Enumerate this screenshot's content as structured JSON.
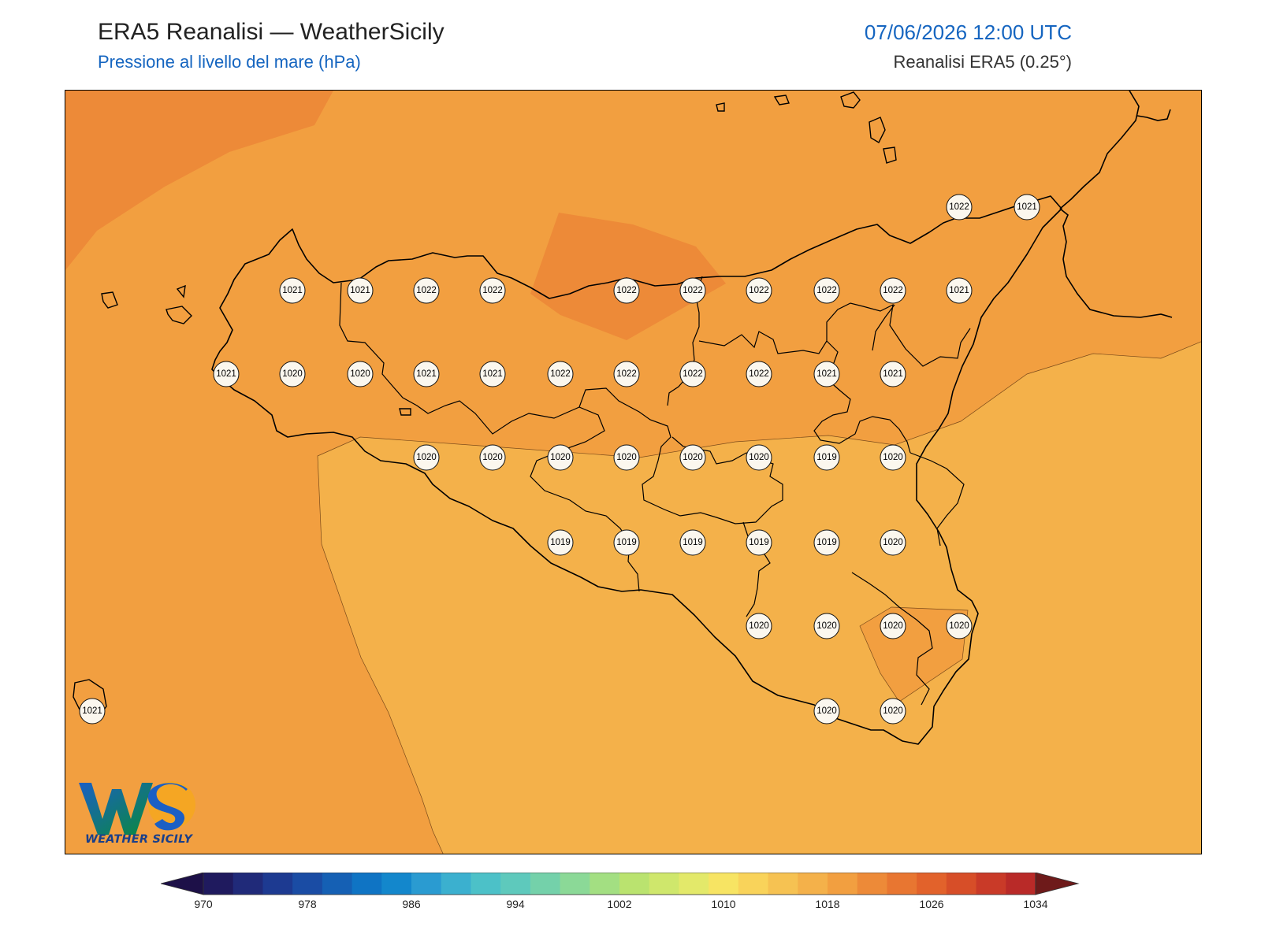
{
  "header": {
    "title": "ERA5 Reanalisi — WeatherSicily",
    "subtitle": "Pressione al livello del mare (hPa)",
    "datetime": "07/06/2026 12:00 UTC",
    "source": "Reanalisi ERA5 (0.25°)"
  },
  "logo": {
    "text": "WEATHER SICILY",
    "mark": "WS"
  },
  "colors": {
    "band_1016_1018": "#f4b14a",
    "band_1018_1020": "#f29f40",
    "band_1020_1022": "#ed8a38",
    "coast": "#000000",
    "station_fill": "#fbf7ee"
  },
  "colorbar": {
    "min": 970,
    "max": 1034,
    "step": 2,
    "tick_labels": [
      "970",
      "978",
      "986",
      "994",
      "1002",
      "1010",
      "1018",
      "1026",
      "1034"
    ],
    "colors": [
      "#1d1048",
      "#1f1a5e",
      "#202a79",
      "#1d3a91",
      "#1a4ca4",
      "#1560b4",
      "#0f74c4",
      "#1387cc",
      "#2a9bd1",
      "#3bb0cf",
      "#4cc1c8",
      "#5ec9bc",
      "#74d1aa",
      "#8bd997",
      "#a3df82",
      "#bae36f",
      "#cfe76c",
      "#e3e96a",
      "#f7e463",
      "#f9d35a",
      "#f6c252",
      "#f4b14a",
      "#f29f40",
      "#ed8a38",
      "#e87631",
      "#e2622b",
      "#d74e28",
      "#c93a28",
      "#b92a28",
      "#6e1a1a"
    ]
  },
  "stations": [
    {
      "v": "1022"
    },
    {
      "v": "1021"
    },
    {
      "v": "1021"
    },
    {
      "v": "1021"
    },
    {
      "v": "1022"
    },
    {
      "v": "1022"
    },
    {
      "v": "1022"
    },
    {
      "v": "1022"
    },
    {
      "v": "1022"
    },
    {
      "v": "1022"
    },
    {
      "v": "1022"
    },
    {
      "v": "1021"
    },
    {
      "v": "1021"
    },
    {
      "v": "1020"
    },
    {
      "v": "1020"
    },
    {
      "v": "1021"
    },
    {
      "v": "1021"
    },
    {
      "v": "1022"
    },
    {
      "v": "1022"
    },
    {
      "v": "1022"
    },
    {
      "v": "1022"
    },
    {
      "v": "1021"
    },
    {
      "v": "1021"
    },
    {
      "v": "1020"
    },
    {
      "v": "1020"
    },
    {
      "v": "1020"
    },
    {
      "v": "1020"
    },
    {
      "v": "1020"
    },
    {
      "v": "1020"
    },
    {
      "v": "1019"
    },
    {
      "v": "1020"
    },
    {
      "v": "1019"
    },
    {
      "v": "1019"
    },
    {
      "v": "1019"
    },
    {
      "v": "1019"
    },
    {
      "v": "1019"
    },
    {
      "v": "1020"
    },
    {
      "v": "1020"
    },
    {
      "v": "1020"
    },
    {
      "v": "1020"
    },
    {
      "v": "1020"
    },
    {
      "v": "1021"
    },
    {
      "v": "1020"
    },
    {
      "v": "1020"
    }
  ]
}
